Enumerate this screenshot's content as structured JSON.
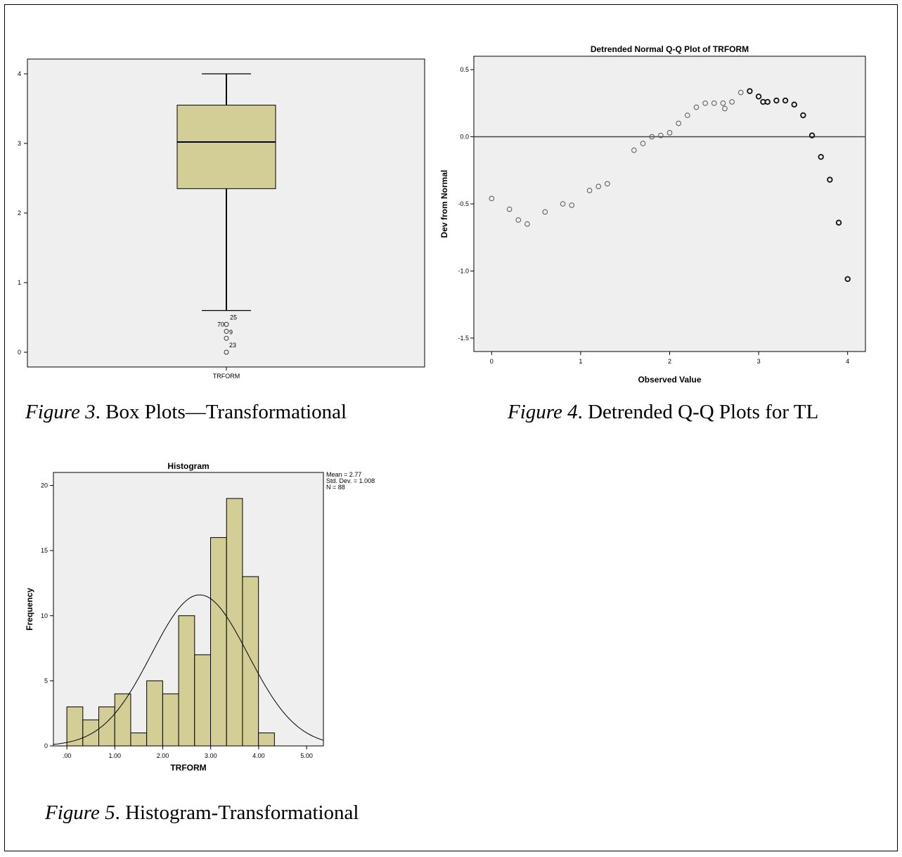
{
  "colors": {
    "plot_bg": "#efefef",
    "box_fill": "#d3ce96",
    "bar_fill": "#d3ce96",
    "stroke": "#000000",
    "qq_line": "#444444"
  },
  "captions": [
    {
      "label": "Figure 3",
      "rest": ". Box Plots—Transformational"
    },
    {
      "label": "Figure 4",
      "rest": ". Detrended Q-Q Plots for TL"
    },
    {
      "label": "Figure 5",
      "rest": ". Histogram-Transformational"
    }
  ],
  "chart_data": [
    {
      "type": "box",
      "title": "",
      "xlabel": "TRFORM",
      "ylabel": "",
      "ylim": [
        0,
        4
      ],
      "yticks": [
        "0",
        "1",
        "2",
        "3",
        "4"
      ],
      "box": {
        "whisker_low": 0.6,
        "q1": 2.35,
        "median": 3.02,
        "q3": 3.55,
        "whisker_high": 4.0
      },
      "outliers": [
        {
          "value": 0.4,
          "label": "70"
        },
        {
          "value": 0.3,
          "label": "9"
        },
        {
          "value": 0.2,
          "label": ""
        },
        {
          "value": 0.0,
          "label": "23"
        }
      ],
      "outlier_top_label": "25",
      "grid": false
    },
    {
      "type": "scatter",
      "title": "Detrended Normal Q-Q Plot of TRFORM",
      "xlabel": "Observed Value",
      "ylabel": "Dev from Normal",
      "xlim": [
        -0.2,
        4.2
      ],
      "ylim": [
        -1.6,
        0.6
      ],
      "xticks": [
        "0",
        "1",
        "2",
        "3",
        "4"
      ],
      "yticks": [
        "0.5",
        "0.0",
        "-0.5",
        "-1.0",
        "-1.5"
      ],
      "reference_line": 0,
      "points": [
        [
          0.0,
          -0.46
        ],
        [
          0.2,
          -0.54
        ],
        [
          0.3,
          -0.62
        ],
        [
          0.4,
          -0.65
        ],
        [
          0.6,
          -0.56
        ],
        [
          0.8,
          -0.5
        ],
        [
          0.9,
          -0.51
        ],
        [
          1.1,
          -0.4
        ],
        [
          1.2,
          -0.37
        ],
        [
          1.3,
          -0.35
        ],
        [
          1.6,
          -0.1
        ],
        [
          1.7,
          -0.05
        ],
        [
          1.8,
          0.0
        ],
        [
          1.9,
          0.01
        ],
        [
          2.0,
          0.03
        ],
        [
          2.1,
          0.1
        ],
        [
          2.2,
          0.16
        ],
        [
          2.3,
          0.22
        ],
        [
          2.4,
          0.25
        ],
        [
          2.5,
          0.25
        ],
        [
          2.6,
          0.25
        ],
        [
          2.62,
          0.21
        ],
        [
          2.7,
          0.26
        ],
        [
          2.8,
          0.33
        ],
        [
          2.9,
          0.34
        ],
        [
          3.0,
          0.3
        ],
        [
          3.05,
          0.26
        ],
        [
          3.1,
          0.26
        ],
        [
          3.2,
          0.27
        ],
        [
          3.3,
          0.27
        ],
        [
          3.4,
          0.24
        ],
        [
          3.5,
          0.16
        ],
        [
          3.6,
          0.01
        ],
        [
          3.7,
          -0.15
        ],
        [
          3.8,
          -0.32
        ],
        [
          3.9,
          -0.64
        ],
        [
          4.0,
          -1.06
        ]
      ],
      "grid": false
    },
    {
      "type": "bar",
      "title": "Histogram",
      "xlabel": "TRFORM",
      "ylabel": "Frequency",
      "xlim": [
        -0.28,
        5.35
      ],
      "ylim": [
        0,
        21
      ],
      "xticks": [
        ".00",
        "1.00",
        "2.00",
        "3.00",
        "4.00",
        "5.00"
      ],
      "yticks": [
        "0",
        "5",
        "10",
        "15",
        "20"
      ],
      "bin_width": 0.333,
      "bin_start": 0.0,
      "values": [
        3,
        2,
        3,
        4,
        1,
        5,
        4,
        10,
        7,
        16,
        19,
        13,
        1
      ],
      "stats": {
        "mean_label": "Mean = 2.77",
        "sd_label": "Std. Dev. = 1.008",
        "n_label": "N = 88"
      },
      "normal_curve": {
        "mean": 2.77,
        "sd": 1.008,
        "n": 88
      },
      "grid": false
    }
  ]
}
